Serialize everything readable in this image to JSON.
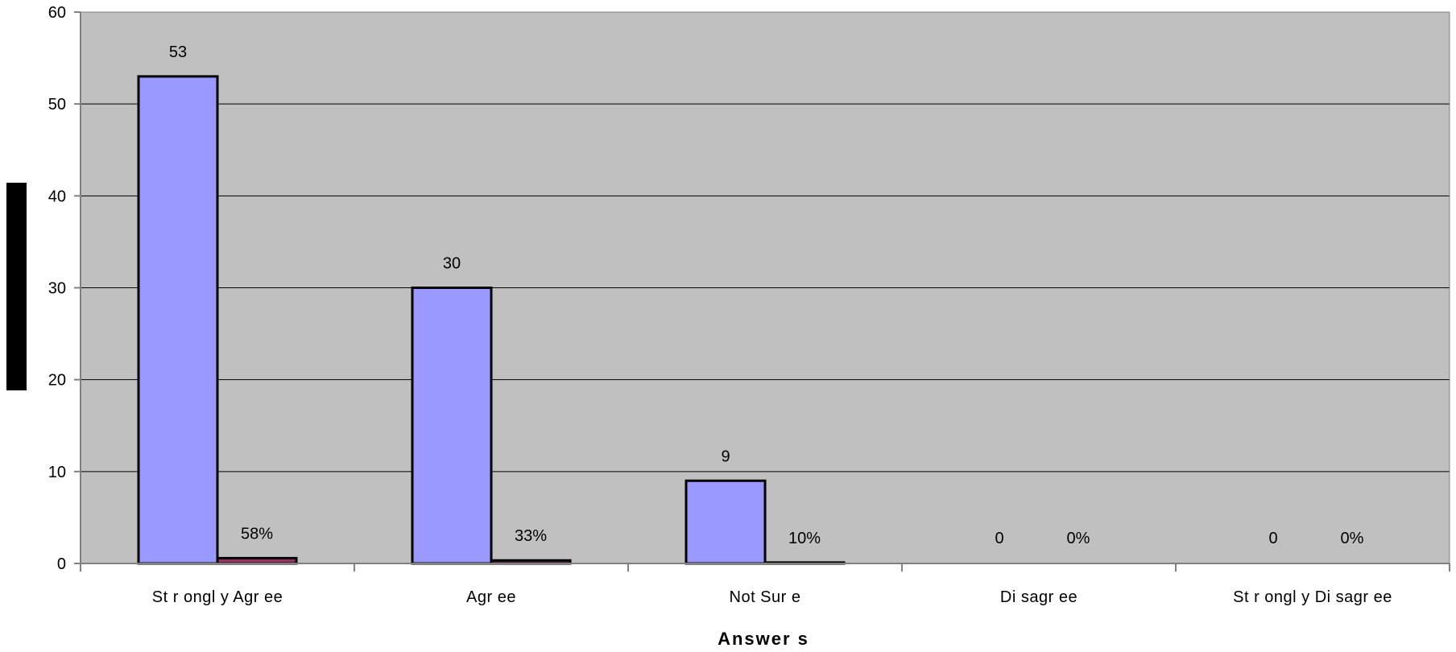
{
  "chart_data": {
    "type": "bar",
    "title": "",
    "xlabel": "Answer s",
    "ylabel": "",
    "ylim": [
      0,
      60
    ],
    "yticks": [
      "0",
      "10",
      "20",
      "30",
      "40",
      "50",
      "60"
    ],
    "grid": true,
    "categories": [
      "St r ongl y Agr ee",
      "Agr ee",
      "Not Sur e",
      "Di sagr ee",
      "St r ongl y Di sagr ee"
    ],
    "series": [
      {
        "values": [
          53,
          30,
          9,
          0,
          0
        ],
        "labels": [
          "53",
          "30",
          "9",
          "0",
          "0"
        ],
        "color": "#9999ff"
      },
      {
        "values": [
          0.58,
          0.33,
          0.1,
          0,
          0
        ],
        "labels": [
          "58%",
          "33%",
          "10%",
          "0%",
          "0%"
        ],
        "color": "#993366"
      }
    ],
    "colors": {
      "plot_background": "#c0c0c0",
      "gridline": "#000000",
      "bar_border": "#000000",
      "axis_title_block": "#000000"
    }
  }
}
